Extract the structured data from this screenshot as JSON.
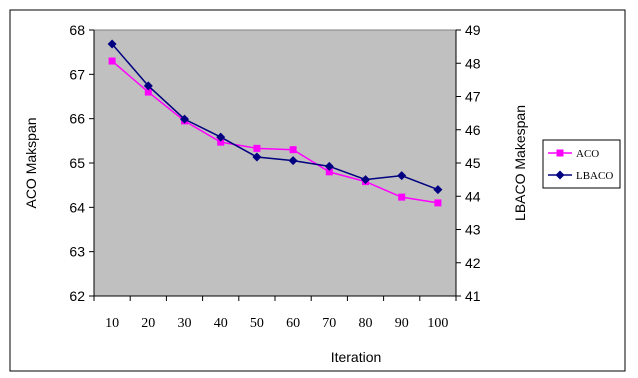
{
  "chart_data": {
    "type": "line",
    "title": "",
    "x": [
      10,
      20,
      30,
      40,
      50,
      60,
      70,
      80,
      90,
      100
    ],
    "xlabel": "Iteration",
    "ylabel_left": "ACO Makspan",
    "ylabel_right": "LBACO Makespan",
    "ylim_left": [
      62,
      68
    ],
    "ylim_right": [
      41,
      49
    ],
    "yticks_left": [
      62,
      63,
      64,
      65,
      66,
      67,
      68
    ],
    "yticks_right": [
      41,
      42,
      43,
      44,
      45,
      46,
      47,
      48,
      49
    ],
    "grid": false,
    "legend_position": "right",
    "plot_background": "#c0c0c0",
    "series": [
      {
        "name": "ACO",
        "axis": "left",
        "color": "#ff00ff",
        "marker": "square",
        "values": [
          67.3,
          66.6,
          65.95,
          65.47,
          65.33,
          65.3,
          64.8,
          64.58,
          64.23,
          64.1
        ]
      },
      {
        "name": "LBACO",
        "axis": "right",
        "color": "#000080",
        "marker": "diamond",
        "values": [
          48.58,
          47.32,
          46.32,
          45.78,
          45.18,
          45.07,
          44.9,
          44.5,
          44.62,
          44.2
        ]
      }
    ]
  }
}
